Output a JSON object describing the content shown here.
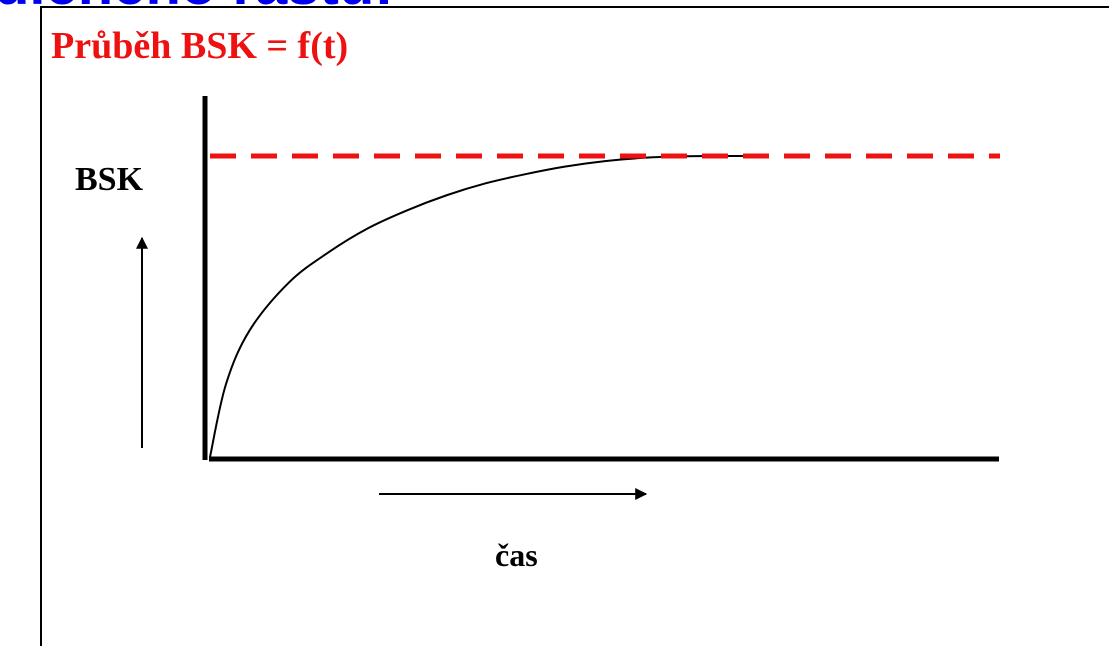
{
  "heading_cut": "dieného rastu:",
  "colors": {
    "heading": "#0000ee",
    "title": "#ee1111",
    "limit_line": "#ee1111",
    "axes": "#000000",
    "curve": "#000000"
  },
  "chart_data": {
    "type": "line",
    "title": "Průběh BSK = f(t)",
    "ylabel": "BSK",
    "xlabel": "čas",
    "grid": false,
    "legend": "none",
    "xlim": [
      0,
      1
    ],
    "ylim": [
      0,
      1
    ],
    "series": [
      {
        "style": "solid",
        "x": [
          0,
          0.02,
          0.05,
          0.1,
          0.15,
          0.2,
          0.25,
          0.3,
          0.35,
          0.4,
          0.45,
          0.5,
          0.55,
          0.6,
          0.65,
          0.675
        ],
        "y": [
          0,
          0.24,
          0.42,
          0.58,
          0.68,
          0.76,
          0.82,
          0.87,
          0.91,
          0.94,
          0.965,
          0.983,
          0.994,
          0.999,
          1.0,
          1.0
        ]
      },
      {
        "style": "dashed",
        "x": [
          0,
          1
        ],
        "y": [
          1.0,
          1.0
        ]
      }
    ],
    "direction_arrows": [
      "up",
      "right"
    ]
  }
}
